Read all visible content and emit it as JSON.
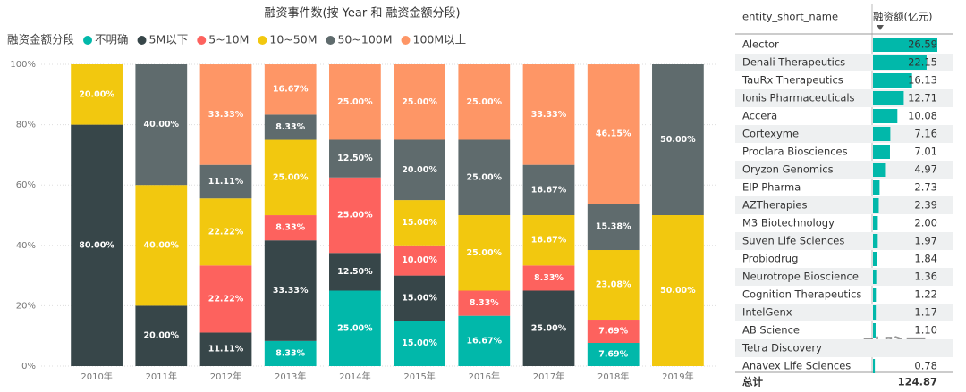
{
  "chart_data": {
    "type": "stacked_bar_100",
    "title": "融资事件数(按 Year 和 融资金额分段)",
    "legend_title": "融资金额分段",
    "categories": [
      "2010年",
      "2011年",
      "2012年",
      "2013年",
      "2014年",
      "2015年",
      "2016年",
      "2017年",
      "2018年",
      "2019年"
    ],
    "series": [
      {
        "name": "不明确",
        "color": "#01B8AA",
        "values": [
          null,
          null,
          null,
          8.33,
          25,
          15,
          16.67,
          null,
          7.69,
          null
        ],
        "value_labels": [
          null,
          null,
          null,
          "8.33%",
          "25.00%",
          "15.00%",
          "16.67%",
          null,
          "7.69%",
          null
        ]
      },
      {
        "name": "5M以下",
        "color": "#374649",
        "values": [
          80,
          20,
          11.11,
          33.33,
          12.5,
          15,
          null,
          25,
          null,
          null
        ],
        "value_labels": [
          "80.00%",
          "20.00%",
          "11.11%",
          "33.33%",
          "12.50%",
          "15.00%",
          null,
          "25.00%",
          null,
          null
        ]
      },
      {
        "name": "5~10M",
        "color": "#FD625E",
        "values": [
          null,
          null,
          22.22,
          8.33,
          25,
          10,
          8.33,
          8.33,
          7.69,
          null
        ],
        "value_labels": [
          null,
          null,
          "22.22%",
          "8.33%",
          "25.00%",
          "10.00%",
          "8.33%",
          "8.33%",
          "7.69%",
          null
        ]
      },
      {
        "name": "10~50M",
        "color": "#F2C80F",
        "values": [
          20,
          40,
          22.22,
          25,
          null,
          15,
          25,
          16.67,
          23.08,
          50
        ],
        "value_labels": [
          "20.00%",
          "40.00%",
          "22.22%",
          "25.00%",
          null,
          "15.00%",
          "25.00%",
          "16.67%",
          "23.08%",
          "50.00%"
        ]
      },
      {
        "name": "50~100M",
        "color": "#5F6B6D",
        "values": [
          null,
          40,
          11.11,
          8.33,
          12.5,
          20,
          25,
          16.67,
          15.38,
          50
        ],
        "value_labels": [
          null,
          "40.00%",
          "11.11%",
          "8.33%",
          "12.50%",
          "20.00%",
          "25.00%",
          "16.67%",
          "15.38%",
          "50.00%"
        ]
      },
      {
        "name": "100M以上",
        "color": "#FE9666",
        "values": [
          null,
          null,
          33.33,
          16.67,
          25,
          25,
          25,
          33.33,
          46.15,
          null
        ],
        "value_labels": [
          null,
          null,
          "33.33%",
          "16.67%",
          "25.00%",
          "25.00%",
          "25.00%",
          "33.33%",
          "46.15%",
          null
        ]
      }
    ],
    "ylim": [
      0,
      100
    ],
    "yticks": [
      {
        "value": 0,
        "label": "0%"
      },
      {
        "value": 20,
        "label": "20%"
      },
      {
        "value": 40,
        "label": "40%"
      },
      {
        "value": 60,
        "label": "60%"
      },
      {
        "value": 80,
        "label": "80%"
      },
      {
        "value": 100,
        "label": "100%"
      }
    ],
    "grid": true
  },
  "table": {
    "columns": [
      "entity_short_name",
      "融资额(亿元)"
    ],
    "bar_color": "#01B8AA",
    "rows": [
      [
        "Alector",
        26.59
      ],
      [
        "Denali Therapeutics",
        22.15
      ],
      [
        "TauRx Therapeutics",
        16.13
      ],
      [
        "Ionis Pharmaceuticals",
        12.71
      ],
      [
        "Accera",
        10.08
      ],
      [
        "Cortexyme",
        7.16
      ],
      [
        "Proclara Biosciences",
        7.01
      ],
      [
        "Oryzon Genomics",
        4.97
      ],
      [
        "EIP Pharma",
        2.73
      ],
      [
        "AZTherapies",
        2.39
      ],
      [
        "M3 Biotechnology",
        {
          "value": 2,
          "label": "2.00"
        }
      ],
      [
        "Suven Life Sciences",
        1.97
      ],
      [
        "Probiodrug",
        1.84
      ],
      [
        "Neurotrope Bioscience",
        1.36
      ],
      [
        "Cognition Therapeutics",
        1.22
      ],
      [
        "IntelGenx",
        1.17
      ],
      [
        "AB Science",
        {
          "value": 1.1,
          "label": "1.10"
        }
      ],
      [
        "Tetra Discovery",
        null
      ],
      [
        "Anavex Life Sciences",
        0.78
      ]
    ],
    "total": [
      "总计",
      124.87
    ]
  },
  "watermark": "动脉网"
}
